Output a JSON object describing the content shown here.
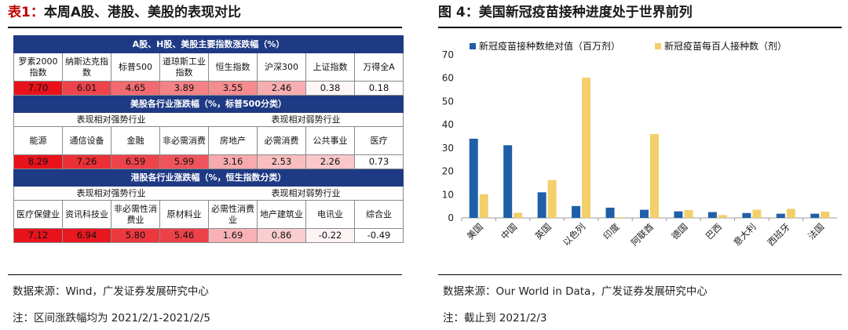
{
  "left": {
    "title_prefix": "表1：",
    "title_rest": "本周A股、港股、美股的表现对比",
    "table": {
      "section1": "A股、H股、美股主要指数涨跌幅（%）",
      "s1_labels": [
        "罗素2000指数",
        "纳斯达克指数",
        "标普500",
        "道琼斯工业指数",
        "恒生指数",
        "沪深300",
        "上证指数",
        "万得全A"
      ],
      "s1_values": [
        "7.70",
        "6.01",
        "4.65",
        "3.89",
        "3.55",
        "2.46",
        "0.38",
        "0.18"
      ],
      "section2": "美股各行业涨跌幅（%，标普500分类）",
      "s2_strong": "表现相对强势行业",
      "s2_weak": "表现相对弱势行业",
      "s2_labels": [
        "能源",
        "通信设备",
        "金融",
        "非必需消费",
        "房地产",
        "必需消费",
        "公共事业",
        "医疗"
      ],
      "s2_values": [
        "8.29",
        "7.26",
        "6.59",
        "5.99",
        "3.16",
        "2.53",
        "2.26",
        "0.73"
      ],
      "section3": "港股各行业涨跌幅（%，恒生指数分类）",
      "s3_strong": "表现相对强势行业",
      "s3_weak": "表现相对弱势行业",
      "s3_labels": [
        "医疗保健业",
        "资讯科技业",
        "非必需性消费业",
        "原材料业",
        "必需性消费业",
        "地产建筑业",
        "电讯业",
        "综合业"
      ],
      "s3_values": [
        "7.12",
        "6.94",
        "5.80",
        "5.46",
        "1.69",
        "0.86",
        "-0.22",
        "-0.49"
      ]
    },
    "source": "数据来源：Wind，广发证券发展研究中心",
    "note": "注：区间涨跌幅均为 2021/2/1-2021/2/5"
  },
  "right": {
    "title_prefix": "图 4：",
    "title_rest": "美国新冠疫苗接种进度处于世界前列",
    "source": "数据来源：Our World in Data，广发证券发展研究中心",
    "note": "注：截止到 2021/2/3"
  },
  "colors": {
    "band": "#1f3a84",
    "bar1": "#1f5fa8",
    "bar2": "#f2cf6a",
    "heat_strong": "#e8121b",
    "heat_weak": "#ffffff"
  },
  "chart_data": {
    "type": "bar",
    "categories": [
      "美国",
      "中国",
      "英国",
      "以色列",
      "印度",
      "阿联酋",
      "德国",
      "巴西",
      "意大利",
      "西班牙",
      "法国"
    ],
    "series": [
      {
        "name": "新冠疫苗接种数绝对值（百万剂）",
        "values": [
          34,
          31.2,
          11,
          5.1,
          4.4,
          3.5,
          2.8,
          2.5,
          2.1,
          1.8,
          1.8
        ]
      },
      {
        "name": "新冠疫苗每百人接种数（剂）",
        "values": [
          10.2,
          2.2,
          16.2,
          60.2,
          0.3,
          36,
          3.4,
          1.2,
          3.5,
          3.9,
          2.7
        ]
      }
    ],
    "ylim": [
      0,
      70
    ],
    "yticks": [
      0,
      10,
      20,
      30,
      40,
      50,
      60,
      70
    ],
    "legend": "top"
  }
}
